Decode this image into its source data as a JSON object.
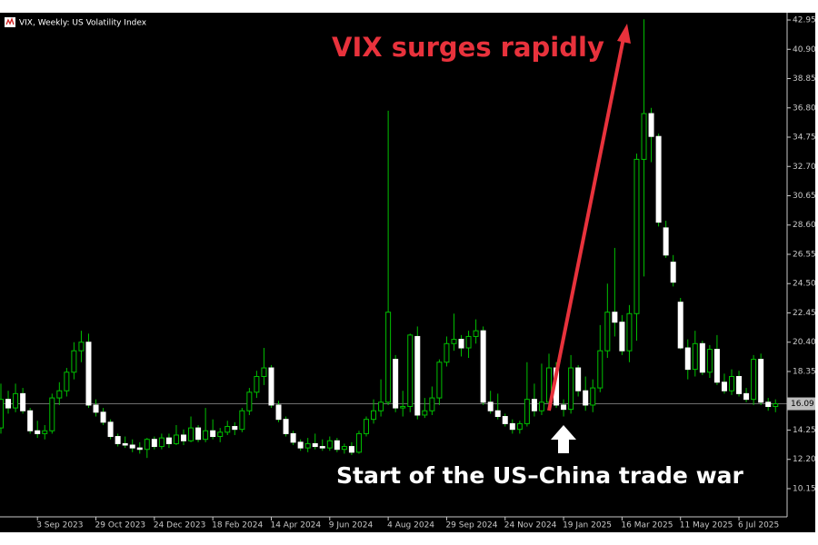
{
  "chart_data": {
    "type": "candlestick",
    "title": "VIX, Weekly:  US Volatility Index",
    "categories": [
      null,
      null,
      null,
      null,
      null,
      "3 Sep 2023",
      null,
      null,
      null,
      null,
      null,
      null,
      null,
      "29 Oct 2023",
      null,
      null,
      null,
      null,
      null,
      null,
      null,
      "24 Dec 2023",
      null,
      null,
      null,
      null,
      null,
      null,
      null,
      "18 Feb 2024",
      null,
      null,
      null,
      null,
      null,
      null,
      null,
      "14 Apr 2024",
      null,
      null,
      null,
      null,
      null,
      null,
      null,
      "9 Jun 2024",
      null,
      null,
      null,
      null,
      null,
      null,
      null,
      "4 Aug 2024",
      null,
      null,
      null,
      null,
      null,
      null,
      null,
      "29 Sep 2024",
      null,
      null,
      null,
      null,
      null,
      null,
      null,
      "24 Nov 2024",
      null,
      null,
      null,
      null,
      null,
      null,
      null,
      "19 Jan 2025",
      null,
      null,
      null,
      null,
      null,
      null,
      null,
      "16 Mar 2025",
      null,
      null,
      null,
      null,
      null,
      null,
      null,
      "11 May 2025",
      null,
      null,
      null,
      null,
      null,
      null,
      null,
      "6 Jul 2025",
      null,
      null,
      null,
      null,
      null
    ],
    "open": [
      14.4,
      16.4,
      15.8,
      16.8,
      15.6,
      14.2,
      14.0,
      14.2,
      16.5,
      17.0,
      18.3,
      19.8,
      20.4,
      16.0,
      15.5,
      14.8,
      13.8,
      13.3,
      13.2,
      13.0,
      12.9,
      13.6,
      13.1,
      13.7,
      13.3,
      13.9,
      13.5,
      14.4,
      13.6,
      14.2,
      13.8,
      14.1,
      14.5,
      14.3,
      15.6,
      16.9,
      18.0,
      18.6,
      16.0,
      15.0,
      14.0,
      13.4,
      13.0,
      13.3,
      13.1,
      13.0,
      13.5,
      12.9,
      13.1,
      12.7,
      14.0,
      15.0,
      15.6,
      16.2,
      19.2,
      15.8,
      15.9,
      20.8,
      15.3,
      15.6,
      16.5,
      19.0,
      20.3,
      20.6,
      20.0,
      20.8,
      21.2,
      16.2,
      15.6,
      15.2,
      14.7,
      14.3,
      14.7,
      16.4,
      15.6,
      16.2,
      18.6,
      16.0,
      15.7,
      18.6,
      17.0,
      16.0,
      17.2,
      19.8,
      22.5,
      21.8,
      19.8,
      22.4,
      33.2,
      36.4,
      34.8,
      28.4,
      26.0,
      23.2,
      20.0,
      18.5,
      20.3,
      18.3,
      19.9,
      17.6,
      17.0,
      18.0,
      16.8,
      16.4,
      19.2,
      16.2,
      15.9
    ],
    "high": [
      17.5,
      17.0,
      17.5,
      17.2,
      15.8,
      14.9,
      14.6,
      16.8,
      17.6,
      18.6,
      20.4,
      21.2,
      21.0,
      16.4,
      15.8,
      15.0,
      14.0,
      13.8,
      13.6,
      13.4,
      13.7,
      13.8,
      14.0,
      14.0,
      14.6,
      14.3,
      15.2,
      14.6,
      15.8,
      15.0,
      14.4,
      14.9,
      14.8,
      15.8,
      17.2,
      18.4,
      20.0,
      18.8,
      16.3,
      15.2,
      14.2,
      13.6,
      13.7,
      14.0,
      13.6,
      13.8,
      13.7,
      13.3,
      13.4,
      14.2,
      15.2,
      16.4,
      17.8,
      36.6,
      19.5,
      17.0,
      21.0,
      21.5,
      16.5,
      17.3,
      19.2,
      20.8,
      22.4,
      20.9,
      21.2,
      22.0,
      21.5,
      17.0,
      16.8,
      15.4,
      15.0,
      14.9,
      19.0,
      17.5,
      18.9,
      19.6,
      19.0,
      16.4,
      19.5,
      18.8,
      18.0,
      17.8,
      21.6,
      24.5,
      27.0,
      22.3,
      23.0,
      33.6,
      43.0,
      36.8,
      35.0,
      28.9,
      26.5,
      23.5,
      20.6,
      21.2,
      20.5,
      20.2,
      20.9,
      18.2,
      18.5,
      18.4,
      17.2,
      19.5,
      19.6,
      16.5,
      16.4
    ],
    "low": [
      14.0,
      15.4,
      15.5,
      15.4,
      14.0,
      13.7,
      13.6,
      14.0,
      16.0,
      16.6,
      17.8,
      19.0,
      15.8,
      15.2,
      14.6,
      13.6,
      13.1,
      13.0,
      12.7,
      12.6,
      12.3,
      12.9,
      12.9,
      13.0,
      13.2,
      13.2,
      13.4,
      13.4,
      13.4,
      13.6,
      13.4,
      13.9,
      13.9,
      14.1,
      15.3,
      16.5,
      17.4,
      15.8,
      14.8,
      13.8,
      13.2,
      12.8,
      12.7,
      12.9,
      12.8,
      12.8,
      12.7,
      12.6,
      12.5,
      12.6,
      13.8,
      14.7,
      15.2,
      16.0,
      15.5,
      15.2,
      15.5,
      15.0,
      15.1,
      15.3,
      16.0,
      18.7,
      19.8,
      19.4,
      19.3,
      20.3,
      16.0,
      15.4,
      15.0,
      14.5,
      14.0,
      14.0,
      14.5,
      15.2,
      15.3,
      15.9,
      15.8,
      15.2,
      15.4,
      16.6,
      15.6,
      15.5,
      16.9,
      19.3,
      20.8,
      19.5,
      19.0,
      20.5,
      25.0,
      33.0,
      28.5,
      26.3,
      24.3,
      19.9,
      17.8,
      18.0,
      18.1,
      17.9,
      17.4,
      16.8,
      16.7,
      16.6,
      16.2,
      16.0,
      16.0,
      15.6,
      15.5
    ],
    "close": [
      16.4,
      15.8,
      16.8,
      15.6,
      14.2,
      14.0,
      14.2,
      16.5,
      17.0,
      18.3,
      19.8,
      20.4,
      16.0,
      15.5,
      14.8,
      13.8,
      13.3,
      13.2,
      13.0,
      12.9,
      13.6,
      13.1,
      13.7,
      13.3,
      13.9,
      13.5,
      14.4,
      13.6,
      14.2,
      13.8,
      14.1,
      14.5,
      14.3,
      15.6,
      16.9,
      18.0,
      18.6,
      16.0,
      15.0,
      14.0,
      13.4,
      13.0,
      13.3,
      13.1,
      13.0,
      13.5,
      12.9,
      13.1,
      12.7,
      14.0,
      15.0,
      15.6,
      16.2,
      22.5,
      15.8,
      15.9,
      20.9,
      15.3,
      15.6,
      16.5,
      19.0,
      20.3,
      20.6,
      20.0,
      20.8,
      21.2,
      16.2,
      15.6,
      15.2,
      14.7,
      14.3,
      14.7,
      16.4,
      15.6,
      16.2,
      18.6,
      16.0,
      15.7,
      18.6,
      17.0,
      16.0,
      17.2,
      19.8,
      22.5,
      21.8,
      19.8,
      22.4,
      33.2,
      36.4,
      34.8,
      28.8,
      26.5,
      24.6,
      20.0,
      18.5,
      20.3,
      18.3,
      19.9,
      17.6,
      17.0,
      18.0,
      16.8,
      16.4,
      19.2,
      16.2,
      15.9,
      16.09
    ],
    "ylim": [
      7.16,
      43.46
    ],
    "yticks": [
      {
        "value": 10.15,
        "label": "10.15"
      },
      {
        "value": 12.2,
        "label": "12.20"
      },
      14.25,
      18.35,
      {
        "value": 20.4,
        "label": "20.40"
      },
      22.45,
      {
        "value": 24.5,
        "label": "24.50"
      },
      26.55,
      {
        "value": 28.6,
        "label": "28.60"
      },
      30.65,
      {
        "value": 32.7,
        "label": "32.70"
      },
      34.75,
      {
        "value": 36.8,
        "label": "36.80"
      },
      38.85,
      {
        "value": 40.9,
        "label": "40.90"
      },
      42.95
    ],
    "current_price": 16.09,
    "up_color": "#000000",
    "down_color": "#ffffff",
    "wick_color": "#00c000",
    "annotations": [
      {
        "text": "VIX surges rapidly",
        "color": "#e8323c"
      },
      {
        "text": "Start of the US–China trade war",
        "color": "#ffffff"
      }
    ]
  }
}
